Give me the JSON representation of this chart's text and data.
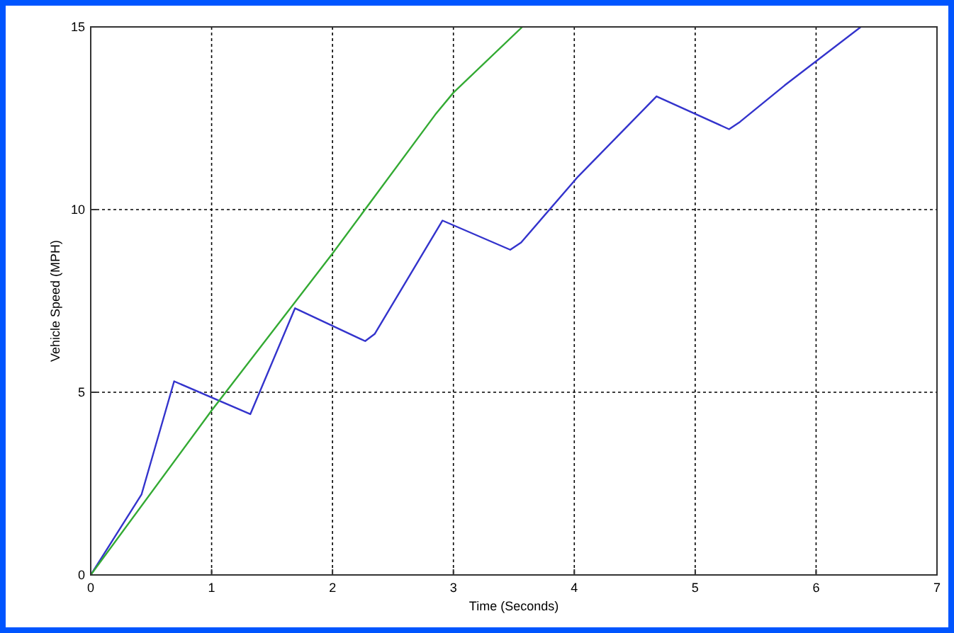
{
  "chart_data": {
    "type": "line",
    "xlabel": "Time (Seconds)",
    "ylabel": "Vehicle Speed (MPH)",
    "xlim": [
      0,
      7
    ],
    "ylim": [
      0,
      15
    ],
    "xticks": [
      0,
      1,
      2,
      3,
      4,
      5,
      6,
      7
    ],
    "yticks": [
      0,
      5,
      10,
      15
    ],
    "grid": true,
    "line_style": "solid",
    "marker": "none",
    "series": [
      {
        "color": "#3333cc",
        "x": [
          0,
          0.42,
          0.69,
          1.32,
          1.69,
          2.27,
          2.35,
          2.91,
          3.47,
          3.56,
          4.03,
          4.68,
          5.28,
          5.37,
          5.74,
          6.37
        ],
        "values": [
          0,
          2.2,
          5.3,
          4.4,
          7.3,
          6.4,
          6.6,
          9.7,
          8.9,
          9.1,
          10.9,
          13.1,
          12.2,
          12.4,
          13.4,
          15
        ]
      },
      {
        "color": "#33aa33",
        "x": [
          0,
          1,
          2,
          2.85,
          3,
          3.57
        ],
        "values": [
          0,
          4.5,
          8.8,
          12.6,
          13.2,
          15
        ]
      }
    ]
  }
}
